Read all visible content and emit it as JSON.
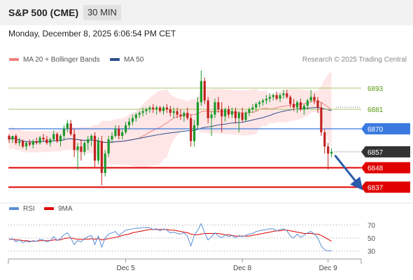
{
  "header": {
    "title": "S&P 500 (CME)",
    "timeframe": "30 MIN",
    "datetime": "Monday, December 8, 2025 6:06:54 PM CET"
  },
  "legend": {
    "items": [
      {
        "label": "MA 20 + Bollinger Bands",
        "color": "#f08080"
      },
      {
        "label": "MA 50",
        "color": "#2b4f8c"
      }
    ]
  },
  "credit": "Research © 2025 Trading Central",
  "rsi_legend": {
    "items": [
      {
        "label": "RSI",
        "color": "#5b8fd6"
      },
      {
        "label": "9MA",
        "color": "#e00000"
      }
    ]
  },
  "colors": {
    "up": "#1a9a2a",
    "down": "#c0211f",
    "support": "#e00000",
    "pivot": "#3b7be0",
    "resistance": "#a6c76a",
    "arrow": "#2b5bab",
    "current": "#333333"
  },
  "chart_data": {
    "type": "candlestick",
    "ylim": [
      6832,
      6906
    ],
    "levels": [
      {
        "label": "6893",
        "value": 6893,
        "kind": "resistance"
      },
      {
        "label": "6881",
        "value": 6881,
        "kind": "resistance"
      },
      {
        "label": "6870",
        "value": 6870,
        "kind": "pivot"
      },
      {
        "label": "6857",
        "value": 6857,
        "kind": "current"
      },
      {
        "label": "6848",
        "value": 6848,
        "kind": "support"
      },
      {
        "label": "6837",
        "value": 6837,
        "kind": "support"
      }
    ],
    "x_ticks": [
      {
        "label": "Dec 5",
        "index": 34
      },
      {
        "label": "Dec 8",
        "index": 68
      },
      {
        "label": "Dec 9",
        "index": 93
      }
    ],
    "projection": {
      "from_index": 95,
      "from_value": 6855,
      "to_index": 102,
      "to_value": 6838
    },
    "candles": [
      [
        6866,
        6867,
        6862,
        6864
      ],
      [
        6864,
        6866,
        6862,
        6866
      ],
      [
        6866,
        6867,
        6861,
        6862
      ],
      [
        6862,
        6865,
        6860,
        6863
      ],
      [
        6863,
        6864,
        6859,
        6860
      ],
      [
        6860,
        6863,
        6858,
        6862
      ],
      [
        6862,
        6864,
        6860,
        6861
      ],
      [
        6861,
        6864,
        6859,
        6863
      ],
      [
        6863,
        6865,
        6861,
        6862
      ],
      [
        6862,
        6866,
        6861,
        6865
      ],
      [
        6865,
        6867,
        6863,
        6864
      ],
      [
        6864,
        6866,
        6861,
        6862
      ],
      [
        6862,
        6865,
        6860,
        6864
      ],
      [
        6864,
        6869,
        6863,
        6867
      ],
      [
        6867,
        6868,
        6862,
        6863
      ],
      [
        6863,
        6867,
        6860,
        6866
      ],
      [
        6866,
        6872,
        6864,
        6870
      ],
      [
        6870,
        6875,
        6868,
        6873
      ],
      [
        6873,
        6875,
        6866,
        6867
      ],
      [
        6867,
        6870,
        6854,
        6858
      ],
      [
        6858,
        6862,
        6847,
        6860
      ],
      [
        6860,
        6864,
        6852,
        6857
      ],
      [
        6857,
        6863,
        6855,
        6862
      ],
      [
        6862,
        6866,
        6858,
        6864
      ],
      [
        6864,
        6867,
        6860,
        6866
      ],
      [
        6866,
        6868,
        6848,
        6852
      ],
      [
        6852,
        6865,
        6850,
        6863
      ],
      [
        6863,
        6866,
        6838,
        6845
      ],
      [
        6845,
        6858,
        6843,
        6856
      ],
      [
        6856,
        6866,
        6854,
        6864
      ],
      [
        6864,
        6868,
        6862,
        6866
      ],
      [
        6866,
        6872,
        6865,
        6870
      ],
      [
        6870,
        6872,
        6864,
        6866
      ],
      [
        6866,
        6870,
        6864,
        6868
      ],
      [
        6868,
        6874,
        6867,
        6872
      ],
      [
        6872,
        6876,
        6870,
        6874
      ],
      [
        6874,
        6878,
        6872,
        6876
      ],
      [
        6876,
        6879,
        6874,
        6878
      ],
      [
        6878,
        6880,
        6876,
        6879
      ],
      [
        6879,
        6882,
        6877,
        6880
      ],
      [
        6880,
        6882,
        6878,
        6881
      ],
      [
        6881,
        6883,
        6879,
        6882
      ],
      [
        6882,
        6884,
        6879,
        6881
      ],
      [
        6881,
        6883,
        6878,
        6882
      ],
      [
        6882,
        6883,
        6879,
        6880
      ],
      [
        6880,
        6883,
        6878,
        6882
      ],
      [
        6882,
        6884,
        6879,
        6881
      ],
      [
        6881,
        6883,
        6877,
        6879
      ],
      [
        6879,
        6882,
        6876,
        6880
      ],
      [
        6880,
        6882,
        6876,
        6878
      ],
      [
        6878,
        6881,
        6875,
        6877
      ],
      [
        6877,
        6880,
        6874,
        6879
      ],
      [
        6879,
        6882,
        6875,
        6876
      ],
      [
        6876,
        6878,
        6860,
        6863
      ],
      [
        6863,
        6875,
        6860,
        6872
      ],
      [
        6872,
        6888,
        6870,
        6885
      ],
      [
        6885,
        6903,
        6883,
        6897
      ],
      [
        6897,
        6899,
        6884,
        6886
      ],
      [
        6886,
        6888,
        6873,
        6876
      ],
      [
        6876,
        6880,
        6866,
        6878
      ],
      [
        6878,
        6887,
        6876,
        6885
      ],
      [
        6885,
        6888,
        6879,
        6881
      ],
      [
        6881,
        6885,
        6868,
        6877
      ],
      [
        6877,
        6882,
        6874,
        6881
      ],
      [
        6881,
        6883,
        6876,
        6878
      ],
      [
        6878,
        6882,
        6876,
        6880
      ],
      [
        6880,
        6882,
        6873,
        6876
      ],
      [
        6876,
        6880,
        6868,
        6879
      ],
      [
        6879,
        6882,
        6874,
        6875
      ],
      [
        6875,
        6880,
        6874,
        6879
      ],
      [
        6879,
        6882,
        6877,
        6881
      ],
      [
        6881,
        6884,
        6879,
        6882
      ],
      [
        6882,
        6885,
        6880,
        6884
      ],
      [
        6884,
        6886,
        6882,
        6885
      ],
      [
        6885,
        6887,
        6883,
        6886
      ],
      [
        6886,
        6889,
        6884,
        6887
      ],
      [
        6887,
        6890,
        6885,
        6888
      ],
      [
        6888,
        6890,
        6886,
        6889
      ],
      [
        6889,
        6891,
        6886,
        6887
      ],
      [
        6887,
        6890,
        6885,
        6889
      ],
      [
        6889,
        6892,
        6887,
        6890
      ],
      [
        6890,
        6892,
        6887,
        6888
      ],
      [
        6888,
        6889,
        6882,
        6884
      ],
      [
        6884,
        6887,
        6880,
        6882
      ],
      [
        6882,
        6886,
        6879,
        6885
      ],
      [
        6885,
        6887,
        6880,
        6881
      ],
      [
        6881,
        6884,
        6878,
        6883
      ],
      [
        6883,
        6887,
        6881,
        6886
      ],
      [
        6886,
        6892,
        6885,
        6888
      ],
      [
        6888,
        6890,
        6884,
        6886
      ],
      [
        6886,
        6888,
        6879,
        6882
      ],
      [
        6882,
        6885,
        6866,
        6868
      ],
      [
        6868,
        6870,
        6856,
        6860
      ],
      [
        6860,
        6862,
        6847,
        6856
      ],
      [
        6856,
        6859,
        6854,
        6857
      ]
    ],
    "rsi": {
      "ylim": [
        20,
        80
      ],
      "levels": [
        70,
        50,
        30
      ],
      "rsi": [
        47,
        49,
        44,
        47,
        43,
        45,
        44,
        46,
        45,
        48,
        47,
        44,
        46,
        52,
        46,
        49,
        55,
        58,
        50,
        40,
        46,
        44,
        49,
        52,
        54,
        40,
        53,
        36,
        50,
        56,
        58,
        60,
        54,
        58,
        62,
        63,
        64,
        65,
        65,
        66,
        66,
        66,
        63,
        64,
        61,
        64,
        62,
        58,
        59,
        57,
        56,
        58,
        53,
        38,
        54,
        62,
        72,
        58,
        47,
        52,
        58,
        53,
        50,
        55,
        52,
        54,
        50,
        54,
        52,
        54,
        56,
        57,
        60,
        61,
        62,
        63,
        64,
        64,
        61,
        63,
        64,
        61,
        53,
        50,
        56,
        51,
        54,
        58,
        60,
        56,
        50,
        38,
        32,
        30,
        31
      ],
      "ma": [
        48,
        48,
        47,
        47,
        46,
        46,
        45,
        45,
        45,
        46,
        46,
        46,
        46,
        47,
        47,
        47,
        49,
        50,
        50,
        49,
        48,
        48,
        48,
        48,
        49,
        48,
        49,
        47,
        48,
        49,
        50,
        51,
        52,
        54,
        55,
        56,
        58,
        59,
        60,
        61,
        62,
        63,
        63,
        63,
        63,
        63,
        63,
        62,
        62,
        61,
        60,
        59,
        58,
        56,
        55,
        55,
        56,
        57,
        57,
        57,
        57,
        57,
        56,
        55,
        55,
        54,
        53,
        53,
        53,
        53,
        53,
        54,
        55,
        56,
        57,
        58,
        59,
        60,
        61,
        61,
        62,
        62,
        61,
        60,
        59,
        58,
        57,
        57,
        57,
        56,
        56,
        54,
        51,
        48,
        45
      ]
    }
  }
}
